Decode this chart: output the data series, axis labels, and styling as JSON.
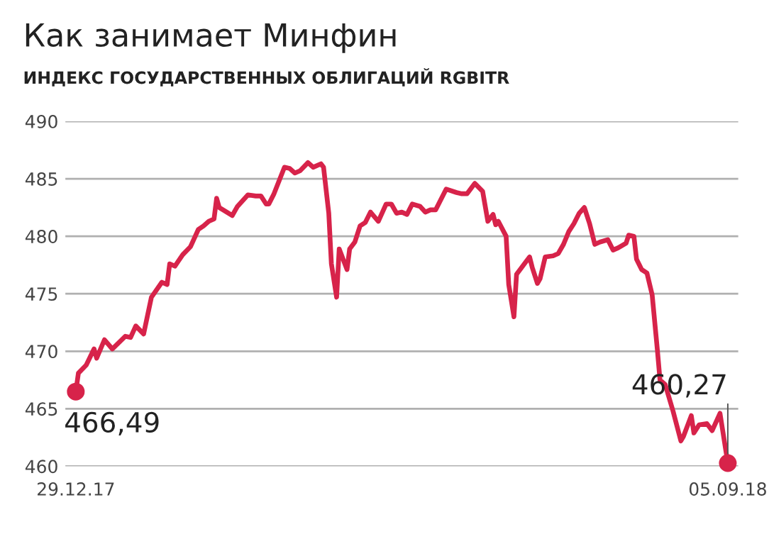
{
  "chart_data": {
    "type": "line",
    "title": "Как занимает Минфин",
    "subtitle": "ИНДЕКС ГОСУДАРСТВЕННЫХ ОБЛИГАЦИЙ RGBITR",
    "x": [
      "2017-12-29",
      "2017-12-30",
      "2018-01-02",
      "2018-01-05",
      "2018-01-06",
      "2018-01-09",
      "2018-01-12",
      "2018-01-17",
      "2018-01-19",
      "2018-01-21",
      "2018-01-24",
      "2018-01-27",
      "2018-01-31",
      "2018-02-02",
      "2018-02-03",
      "2018-02-05",
      "2018-02-08",
      "2018-02-11",
      "2018-02-14",
      "2018-02-16",
      "2018-02-18",
      "2018-02-20",
      "2018-02-21",
      "2018-02-22",
      "2018-02-27",
      "2018-03-01",
      "2018-03-05",
      "2018-03-08",
      "2018-03-10",
      "2018-03-12",
      "2018-03-13",
      "2018-03-15",
      "2018-03-19",
      "2018-03-21",
      "2018-03-23",
      "2018-03-25",
      "2018-03-28",
      "2018-03-30",
      "2018-04-02",
      "2018-04-03",
      "2018-04-05",
      "2018-04-06",
      "2018-04-08",
      "2018-04-09",
      "2018-04-12",
      "2018-04-13",
      "2018-04-15",
      "2018-04-17",
      "2018-04-19",
      "2018-04-21",
      "2018-04-24",
      "2018-04-27",
      "2018-04-29",
      "2018-05-01",
      "2018-05-03",
      "2018-05-05",
      "2018-05-07",
      "2018-05-10",
      "2018-05-12",
      "2018-05-14",
      "2018-05-16",
      "2018-05-20",
      "2018-05-24",
      "2018-05-26",
      "2018-05-28",
      "2018-05-31",
      "2018-06-03",
      "2018-06-05",
      "2018-06-07",
      "2018-06-08",
      "2018-06-09",
      "2018-06-12",
      "2018-06-13",
      "2018-06-15",
      "2018-06-16",
      "2018-06-19",
      "2018-06-21",
      "2018-06-22",
      "2018-06-24",
      "2018-06-25",
      "2018-06-27",
      "2018-06-30",
      "2018-07-02",
      "2018-07-04",
      "2018-07-06",
      "2018-07-08",
      "2018-07-10",
      "2018-07-12",
      "2018-07-14",
      "2018-07-16",
      "2018-07-18",
      "2018-07-21",
      "2018-07-23",
      "2018-07-25",
      "2018-07-28",
      "2018-07-29",
      "2018-07-31",
      "2018-08-01",
      "2018-08-03",
      "2018-08-05",
      "2018-08-07",
      "2018-08-09",
      "2018-08-10",
      "2018-08-12",
      "2018-08-15",
      "2018-08-18",
      "2018-08-19",
      "2018-08-22",
      "2018-08-23",
      "2018-08-25",
      "2018-08-28",
      "2018-08-30",
      "2018-09-02",
      "2018-09-05"
    ],
    "series": [
      {
        "color": "#d7234a",
        "values": [
          466.49,
          468.1,
          468.8,
          470.2,
          469.4,
          471.0,
          470.2,
          471.3,
          471.2,
          472.2,
          471.5,
          474.7,
          476.0,
          475.8,
          477.6,
          477.4,
          478.4,
          479.1,
          480.6,
          480.9,
          481.3,
          481.5,
          483.3,
          482.5,
          481.8,
          482.6,
          483.6,
          483.5,
          483.5,
          482.8,
          482.8,
          483.7,
          486.0,
          485.9,
          485.5,
          485.7,
          486.4,
          486.0,
          486.3,
          486.0,
          482.0,
          477.6,
          474.7,
          478.9,
          477.1,
          478.9,
          479.5,
          480.9,
          481.2,
          482.1,
          481.3,
          482.8,
          482.8,
          482.0,
          482.1,
          481.9,
          482.8,
          482.6,
          482.1,
          482.3,
          482.3,
          484.1,
          483.8,
          483.7,
          483.7,
          484.6,
          483.9,
          481.3,
          481.9,
          481.0,
          481.3,
          480.0,
          475.8,
          473.0,
          476.7,
          477.6,
          478.2,
          477.3,
          475.9,
          476.3,
          478.2,
          478.3,
          478.5,
          479.3,
          480.4,
          481.1,
          482.0,
          482.5,
          481.1,
          479.3,
          479.5,
          479.7,
          478.8,
          479.0,
          479.4,
          480.1,
          480.0,
          478.0,
          477.1,
          476.8,
          474.9,
          470.1,
          467.5,
          467.1,
          464.8,
          462.2,
          462.6,
          464.4,
          462.9,
          463.6,
          463.7,
          463.1,
          464.6,
          460.27
        ]
      }
    ],
    "xlim": [
      "2017-12-25",
      "2018-09-09"
    ],
    "xticks": [
      {
        "value": "2017-12-29",
        "label": "29.12.17"
      },
      {
        "value": "2018-09-05",
        "label": "05.09.18"
      }
    ],
    "ylim": [
      460,
      490
    ],
    "yticks": [
      460,
      465,
      470,
      475,
      480,
      485,
      490
    ],
    "grid": "y",
    "marker": "none",
    "line_style": "solid",
    "annotations": [
      {
        "text": "466,49",
        "x": "2017-12-29",
        "y": 466.49
      },
      {
        "text": "460,27",
        "x": "2018-09-05",
        "y": 460.27
      }
    ]
  }
}
